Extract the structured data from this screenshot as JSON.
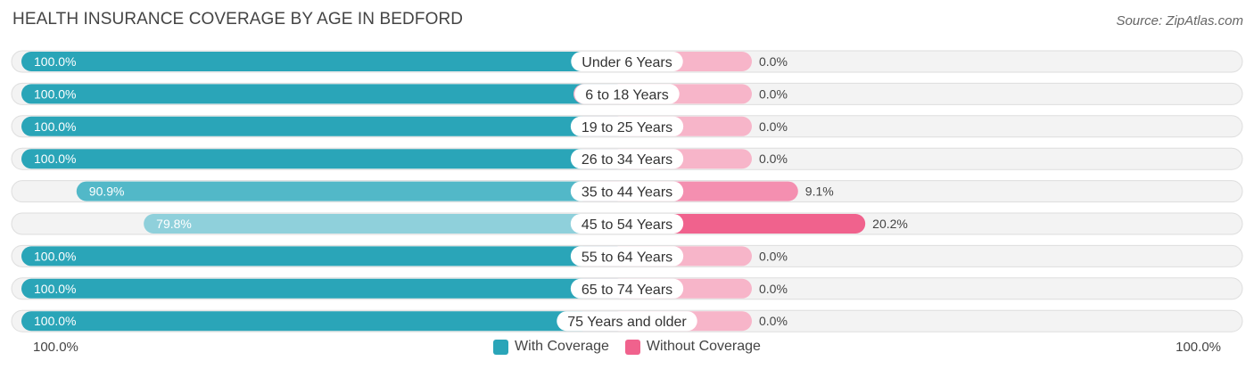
{
  "title": "HEALTH INSURANCE COVERAGE BY AGE IN BEDFORD",
  "source": "Source: ZipAtlas.com",
  "colors": {
    "with_full": "#2aa5b8",
    "with_light": "#8fd0db",
    "without_full": "#f0628d",
    "without_light": "#f7b5c9",
    "track": "#efefef"
  },
  "legend": {
    "with_label": "With Coverage",
    "without_label": "Without Coverage"
  },
  "axis": {
    "left_label": "100.0%",
    "right_label": "100.0%"
  },
  "chart_data": {
    "type": "bar",
    "orientation": "horizontal-diverging",
    "title": "HEALTH INSURANCE COVERAGE BY AGE IN BEDFORD",
    "categories": [
      "Under 6 Years",
      "6 to 18 Years",
      "19 to 25 Years",
      "26 to 34 Years",
      "35 to 44 Years",
      "45 to 54 Years",
      "55 to 64 Years",
      "65 to 74 Years",
      "75 Years and older"
    ],
    "series": [
      {
        "name": "With Coverage",
        "values": [
          100.0,
          100.0,
          100.0,
          100.0,
          90.9,
          79.8,
          100.0,
          100.0,
          100.0
        ],
        "labels": [
          "100.0%",
          "100.0%",
          "100.0%",
          "100.0%",
          "90.9%",
          "79.8%",
          "100.0%",
          "100.0%",
          "100.0%"
        ]
      },
      {
        "name": "Without Coverage",
        "values": [
          0.0,
          0.0,
          0.0,
          0.0,
          9.1,
          20.2,
          0.0,
          0.0,
          0.0
        ],
        "labels": [
          "0.0%",
          "0.0%",
          "0.0%",
          "0.0%",
          "9.1%",
          "20.2%",
          "0.0%",
          "0.0%",
          "0.0%"
        ]
      }
    ],
    "xlim": [
      0,
      100
    ],
    "legend_position": "bottom-center"
  }
}
